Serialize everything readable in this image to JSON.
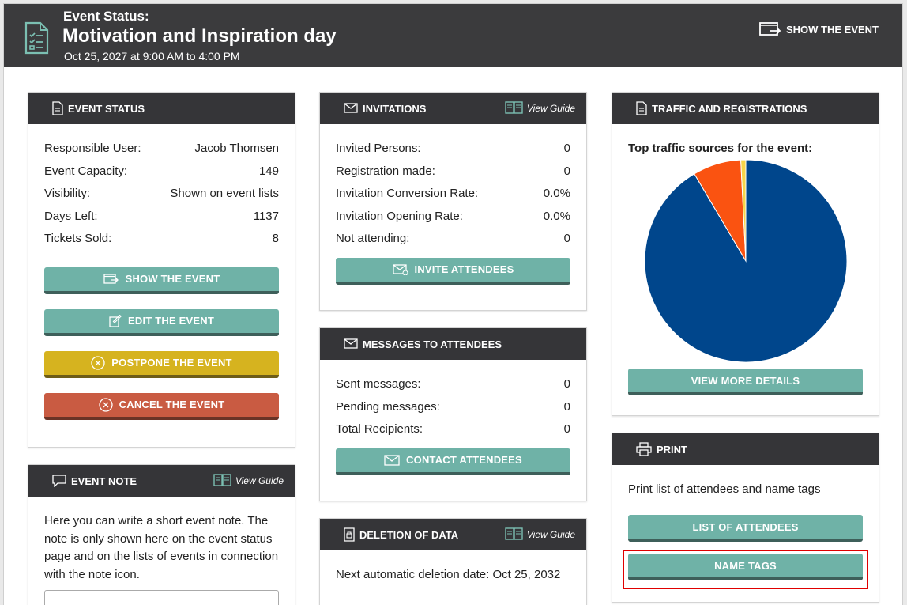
{
  "header": {
    "eyebrow": "Event Status:",
    "title": "Motivation and Inspiration day",
    "date": "Oct 25, 2027 at 9:00 AM to 4:00 PM",
    "show_event": "SHOW THE EVENT"
  },
  "event_status": {
    "title": "EVENT STATUS",
    "rows": [
      {
        "label": "Responsible User:",
        "value": "Jacob Thomsen"
      },
      {
        "label": "Event Capacity:",
        "value": "149"
      },
      {
        "label": "Visibility:",
        "value": "Shown on event lists"
      },
      {
        "label": "Days Left:",
        "value": "1137"
      },
      {
        "label": "Tickets Sold:",
        "value": "8"
      }
    ],
    "buttons": {
      "show": "SHOW THE EVENT",
      "edit": "EDIT THE EVENT",
      "postpone": "POSTPONE THE EVENT",
      "cancel": "CANCEL THE EVENT"
    }
  },
  "event_note": {
    "title": "EVENT NOTE",
    "guide": "View Guide",
    "text": "Here you can write a short event note. The note is only shown here on the event status page and on the lists of events in connection with the note icon.",
    "value": ""
  },
  "invitations": {
    "title": "INVITATIONS",
    "guide": "View Guide",
    "rows": [
      {
        "label": "Invited Persons:",
        "value": "0"
      },
      {
        "label": "Registration made:",
        "value": "0"
      },
      {
        "label": "Invitation Conversion Rate:",
        "value": "0.0%"
      },
      {
        "label": "Invitation Opening Rate:",
        "value": "0.0%"
      },
      {
        "label": "Not attending:",
        "value": "0"
      }
    ],
    "button": "INVITE ATTENDEES"
  },
  "messages": {
    "title": "MESSAGES TO ATTENDEES",
    "rows": [
      {
        "label": "Sent messages:",
        "value": "0"
      },
      {
        "label": "Pending messages:",
        "value": "0"
      },
      {
        "label": "Total Recipients:",
        "value": "0"
      }
    ],
    "button": "CONTACT ATTENDEES"
  },
  "deletion": {
    "title": "DELETION OF DATA",
    "guide": "View Guide",
    "text": "Next automatic deletion date: Oct 25, 2032"
  },
  "traffic": {
    "title": "TRAFFIC AND REGISTRATIONS",
    "subtitle": "Top traffic sources for the event:",
    "button": "VIEW MORE DETAILS"
  },
  "print": {
    "title": "PRINT",
    "text": "Print list of attendees and name tags",
    "list_button": "LIST OF ATTENDEES",
    "tags_button": "NAME TAGS"
  },
  "colors": {
    "header_bg": "#3b3b3d",
    "teal": "#6fb2a7",
    "yellow": "#d6b31f",
    "red": "#c95b42",
    "highlight": "#e00000"
  },
  "chart_data": {
    "type": "pie",
    "title": "Top traffic sources for the event:",
    "slices": [
      {
        "value": 91.5,
        "color": "#00468c"
      },
      {
        "value": 7.7,
        "color": "#fa5311"
      },
      {
        "value": 0.8,
        "color": "#f7d54a"
      }
    ]
  }
}
